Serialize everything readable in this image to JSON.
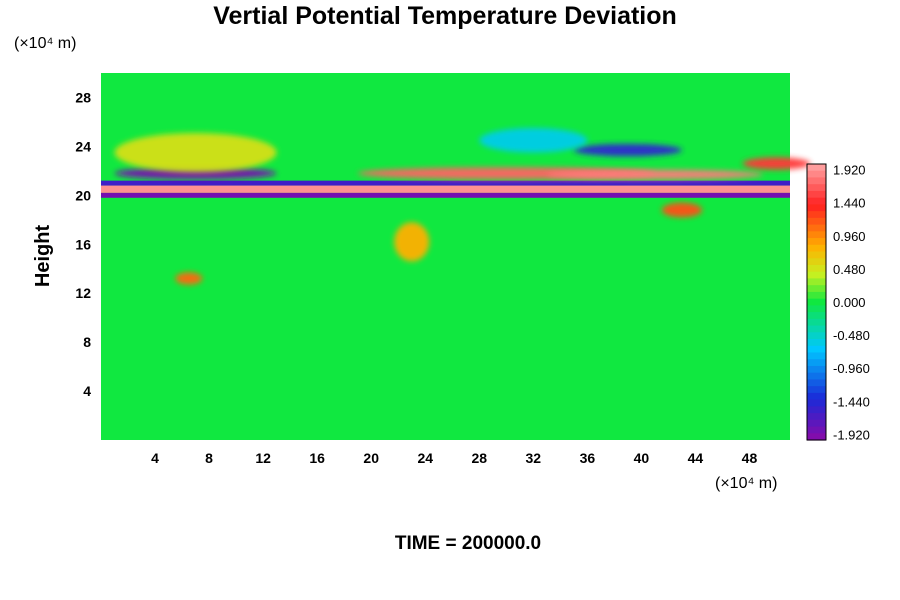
{
  "chart_data": {
    "type": "heatmap",
    "title": "Vertial Potential Temperature Deviation",
    "ylabel": "Height",
    "xlabel": "",
    "y_unit": "(×10⁴ m)",
    "x_unit": "(×10⁴ m)",
    "xlim": [
      0,
      51
    ],
    "ylim": [
      0,
      30
    ],
    "x_ticks": [
      4,
      8,
      12,
      16,
      20,
      24,
      28,
      32,
      36,
      40,
      44,
      48
    ],
    "y_ticks": [
      4,
      8,
      12,
      16,
      20,
      24,
      28
    ],
    "colorbar": {
      "min": -2.0,
      "max": 2.0,
      "ticks": [
        "1.920",
        "1.440",
        "0.960",
        "0.480",
        "0.000",
        "-0.480",
        "-0.960",
        "-1.440",
        "-1.920"
      ],
      "tick_values": [
        1.92,
        1.44,
        0.96,
        0.48,
        0.0,
        -0.48,
        -0.96,
        -1.44,
        -1.92
      ],
      "colors": [
        "#8a0aa8",
        "#1a2ad8",
        "#00c8ff",
        "#10e840",
        "#c8f020",
        "#ffb000",
        "#ff2020",
        "#ffa8a8"
      ],
      "color_positions": [
        0.0,
        0.15,
        0.33,
        0.5,
        0.6,
        0.7,
        0.85,
        1.0
      ]
    },
    "background_value": 0.0,
    "features": [
      {
        "kind": "band",
        "x": [
          0,
          51
        ],
        "y": [
          20.2,
          20.8
        ],
        "value": 1.9
      },
      {
        "kind": "band",
        "x": [
          0,
          51
        ],
        "y": [
          19.8,
          20.2
        ],
        "value": -1.9
      },
      {
        "kind": "band",
        "x": [
          0,
          51
        ],
        "y": [
          20.8,
          21.2
        ],
        "value": -1.6
      },
      {
        "kind": "blob",
        "x": 7,
        "y": 21.8,
        "rx": 6,
        "ry": 0.5,
        "value": -1.9
      },
      {
        "kind": "blob",
        "x": 30,
        "y": 21.8,
        "rx": 11,
        "ry": 0.5,
        "value": 1.7
      },
      {
        "kind": "blob",
        "x": 41,
        "y": 21.7,
        "rx": 8,
        "ry": 0.4,
        "value": 1.8
      },
      {
        "kind": "blob",
        "x": 7,
        "y": 23.5,
        "rx": 6,
        "ry": 1.6,
        "value": 0.5
      },
      {
        "kind": "blob",
        "x": 39,
        "y": 23.7,
        "rx": 4,
        "ry": 0.5,
        "value": -1.5
      },
      {
        "kind": "blob",
        "x": 32,
        "y": 24.5,
        "rx": 4,
        "ry": 1.0,
        "value": -0.6
      },
      {
        "kind": "blob",
        "x": 43,
        "y": 18.8,
        "rx": 1.5,
        "ry": 0.6,
        "value": 1.2
      },
      {
        "kind": "blob",
        "x": 23,
        "y": 16.2,
        "rx": 1.3,
        "ry": 1.6,
        "value": 0.8
      },
      {
        "kind": "blob",
        "x": 6.5,
        "y": 13.2,
        "rx": 1.0,
        "ry": 0.5,
        "value": 1.1
      },
      {
        "kind": "blob",
        "x": 50,
        "y": 22.6,
        "rx": 2.5,
        "ry": 0.5,
        "value": 1.5
      }
    ]
  },
  "footer": {
    "label": "TIME = 200000.0"
  }
}
